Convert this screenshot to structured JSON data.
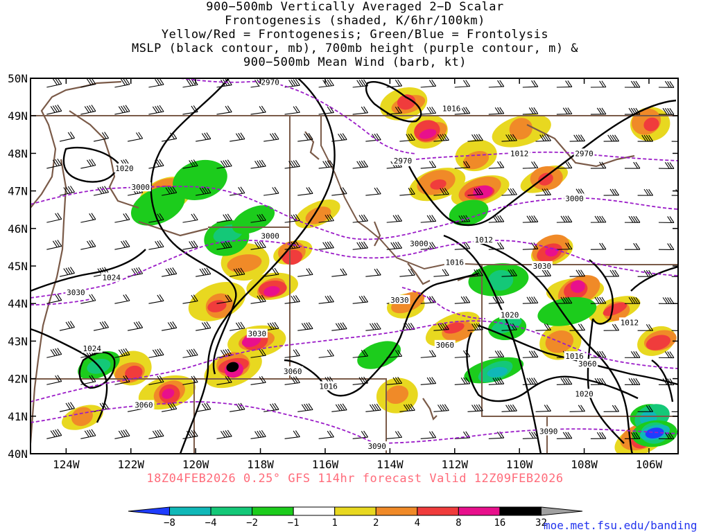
{
  "title": {
    "line1": "900−500mb Vertically Averaged 2−D Scalar",
    "line2": "Frontogenesis (shaded, K/6hr/100km)",
    "line3": "Yellow/Red = Frontogenesis;  Green/Blue = Frontolysis",
    "line4": "MSLP (black contour, mb), 700mb height (purple contour, m) &",
    "line5": "900−500mb Mean Wind (barb, kt)"
  },
  "footer": "18Z04FEB2026 0.25° GFS 114hr forecast Valid 12Z09FEB2026",
  "credit": "moe.met.fsu.edu/banding",
  "axes": {
    "lat_labels": [
      "50N",
      "49N",
      "48N",
      "47N",
      "46N",
      "45N",
      "44N",
      "43N",
      "42N",
      "41N",
      "40N"
    ],
    "lat_values": [
      50,
      49,
      48,
      47,
      46,
      45,
      44,
      43,
      42,
      41,
      40
    ],
    "lon_labels": [
      "124W",
      "122W",
      "120W",
      "118W",
      "116W",
      "114W",
      "112W",
      "110W",
      "108W",
      "106W"
    ],
    "lon_values": [
      -124,
      -122,
      -120,
      -118,
      -116,
      -114,
      -112,
      -110,
      -108,
      -106
    ],
    "lon_range": [
      -125.1,
      -105.1
    ],
    "lat_range": [
      40,
      50
    ]
  },
  "colorbar": {
    "labels": [
      "−8",
      "−4",
      "−2",
      "−1",
      "1",
      "2",
      "4",
      "8",
      "16",
      "32"
    ],
    "colors": [
      "#1f3dff",
      "#10b8b8",
      "#14c878",
      "#1ccc1c",
      "#ffffff",
      "#e8d820",
      "#f08a28",
      "#f03c3c",
      "#e8108c",
      "#000000",
      "#a0a0a0"
    ]
  },
  "contour_labels": {
    "mslp": [
      {
        "text": "1016",
        "lon": -112.1,
        "lat": 49.2
      },
      {
        "text": "1020",
        "lon": -122.2,
        "lat": 47.6
      },
      {
        "text": "1012",
        "lon": -110.0,
        "lat": 48.0
      },
      {
        "text": "1012",
        "lon": -111.1,
        "lat": 45.7
      },
      {
        "text": "1016",
        "lon": -112.0,
        "lat": 45.1
      },
      {
        "text": "1024",
        "lon": -122.6,
        "lat": 44.7
      },
      {
        "text": "1024",
        "lon": -123.2,
        "lat": 42.8
      },
      {
        "text": "1020",
        "lon": -110.3,
        "lat": 43.7
      },
      {
        "text": "1012",
        "lon": -106.6,
        "lat": 43.5
      },
      {
        "text": "1016",
        "lon": -108.3,
        "lat": 42.6
      },
      {
        "text": "1016",
        "lon": -115.9,
        "lat": 41.8
      },
      {
        "text": "1020",
        "lon": -108.0,
        "lat": 41.6
      }
    ],
    "height_700mb": [
      {
        "text": "2970",
        "lon": -117.7,
        "lat": 49.9
      },
      {
        "text": "2970",
        "lon": -108.0,
        "lat": 48.0
      },
      {
        "text": "2970",
        "lon": -113.6,
        "lat": 47.8
      },
      {
        "text": "3000",
        "lon": -121.7,
        "lat": 47.1
      },
      {
        "text": "3000",
        "lon": -108.3,
        "lat": 46.8
      },
      {
        "text": "3000",
        "lon": -117.7,
        "lat": 45.8
      },
      {
        "text": "3000",
        "lon": -113.1,
        "lat": 45.6
      },
      {
        "text": "3030",
        "lon": -109.3,
        "lat": 45.0
      },
      {
        "text": "3030",
        "lon": -123.7,
        "lat": 44.3
      },
      {
        "text": "3030",
        "lon": -113.7,
        "lat": 44.1
      },
      {
        "text": "3030",
        "lon": -118.1,
        "lat": 43.2
      },
      {
        "text": "3060",
        "lon": -112.3,
        "lat": 42.9
      },
      {
        "text": "3060",
        "lon": -117.0,
        "lat": 42.2
      },
      {
        "text": "3060",
        "lon": -107.9,
        "lat": 42.4
      },
      {
        "text": "3060",
        "lon": -121.6,
        "lat": 41.3
      },
      {
        "text": "3090",
        "lon": -114.4,
        "lat": 40.2
      },
      {
        "text": "3090",
        "lon": -109.1,
        "lat": 40.6
      }
    ]
  },
  "frontogenesis_blobs": [
    {
      "lon": -113.5,
      "lat": 49.3,
      "level": 4
    },
    {
      "lon": -112.8,
      "lat": 48.6,
      "level": 8
    },
    {
      "lon": -111.3,
      "lat": 47.9,
      "level": 2
    },
    {
      "lon": -112.5,
      "lat": 47.2,
      "level": 4
    },
    {
      "lon": -111.2,
      "lat": 47.0,
      "level": 8
    },
    {
      "lon": -109.2,
      "lat": 47.3,
      "level": 4
    },
    {
      "lon": -110.0,
      "lat": 48.6,
      "level": 2
    },
    {
      "lon": -106.0,
      "lat": 48.8,
      "level": 4
    },
    {
      "lon": -116.2,
      "lat": 46.4,
      "level": 2
    },
    {
      "lon": -117.0,
      "lat": 45.3,
      "level": 4
    },
    {
      "lon": -117.6,
      "lat": 44.4,
      "level": 8
    },
    {
      "lon": -118.5,
      "lat": 45.1,
      "level": 2
    },
    {
      "lon": -118.2,
      "lat": 43.0,
      "level": 8
    },
    {
      "lon": -118.8,
      "lat": 42.3,
      "level": 16
    },
    {
      "lon": -120.8,
      "lat": 41.6,
      "level": 8
    },
    {
      "lon": -122.0,
      "lat": 42.2,
      "level": 4
    },
    {
      "lon": -119.3,
      "lat": 44.0,
      "level": 4
    },
    {
      "lon": -120.9,
      "lat": 46.9,
      "level": 8
    },
    {
      "lon": -113.5,
      "lat": 44.0,
      "level": 2
    },
    {
      "lon": -112.0,
      "lat": 43.3,
      "level": 4
    },
    {
      "lon": -109.0,
      "lat": 45.4,
      "level": 8
    },
    {
      "lon": -108.2,
      "lat": 44.4,
      "level": 8
    },
    {
      "lon": -107.0,
      "lat": 43.8,
      "level": 4
    },
    {
      "lon": -105.7,
      "lat": 43.0,
      "level": 4
    },
    {
      "lon": -108.7,
      "lat": 43.0,
      "level": 2
    },
    {
      "lon": -113.8,
      "lat": 41.5,
      "level": 2
    },
    {
      "lon": -123.5,
      "lat": 41.0,
      "level": 2
    },
    {
      "lon": -106.3,
      "lat": 40.4,
      "level": 4
    }
  ],
  "frontolysis_blobs": [
    {
      "lon": -119.0,
      "lat": 45.8,
      "level": -2
    },
    {
      "lon": -118.2,
      "lat": 46.2,
      "level": -1
    },
    {
      "lon": -110.6,
      "lat": 44.6,
      "level": -2
    },
    {
      "lon": -110.3,
      "lat": 43.4,
      "level": -2
    },
    {
      "lon": -110.7,
      "lat": 42.2,
      "level": -4
    },
    {
      "lon": -108.6,
      "lat": 43.8,
      "level": -1
    },
    {
      "lon": -106.0,
      "lat": 41.0,
      "level": -4
    },
    {
      "lon": -105.8,
      "lat": 40.6,
      "level": -8
    },
    {
      "lon": -121.2,
      "lat": 46.6,
      "level": -1
    },
    {
      "lon": -119.8,
      "lat": 47.3,
      "level": -1
    },
    {
      "lon": -114.3,
      "lat": 42.6,
      "level": -1
    },
    {
      "lon": -111.5,
      "lat": 46.4,
      "level": -1
    },
    {
      "lon": -123.0,
      "lat": 42.3,
      "level": -2
    }
  ]
}
